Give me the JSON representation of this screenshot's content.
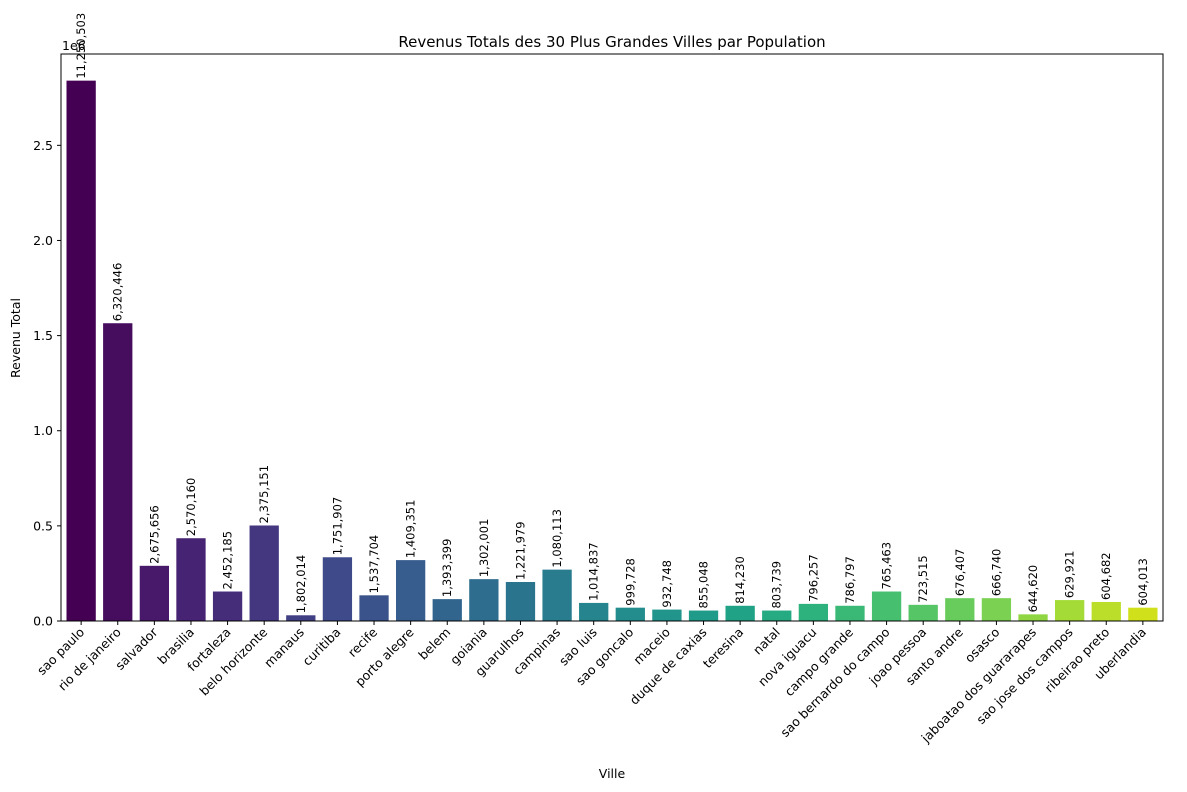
{
  "chart_data": {
    "type": "bar",
    "title": "Revenus Totals des 30 Plus Grandes Villes par Population",
    "xlabel": "Ville",
    "ylabel": "Revenu Total",
    "y_scale_label": "1e6",
    "ylim": [
      0,
      2.98
    ],
    "yticks": [
      0.0,
      0.5,
      1.0,
      1.5,
      2.0,
      2.5
    ],
    "ytick_labels": [
      "0.0",
      "0.5",
      "1.0",
      "1.5",
      "2.0",
      "2.5"
    ],
    "grid": false,
    "categories": [
      "sao paulo",
      "rio de janeiro",
      "salvador",
      "brasilia",
      "fortaleza",
      "belo horizonte",
      "manaus",
      "curitiba",
      "recife",
      "porto alegre",
      "belem",
      "goiania",
      "guarulhos",
      "campinas",
      "sao luis",
      "sao goncalo",
      "maceio",
      "duque de caxias",
      "teresina",
      "natal",
      "nova iguacu",
      "campo grande",
      "sao bernardo do campo",
      "joao pessoa",
      "santo andre",
      "osasco",
      "jaboatao dos guararapes",
      "sao jose dos campos",
      "ribeirao preto",
      "uberlandia"
    ],
    "values": [
      2.84,
      1.565,
      0.29,
      0.435,
      0.155,
      0.502,
      0.03,
      0.335,
      0.135,
      0.32,
      0.115,
      0.22,
      0.205,
      0.27,
      0.095,
      0.07,
      0.06,
      0.055,
      0.08,
      0.055,
      0.09,
      0.08,
      0.155,
      0.085,
      0.12,
      0.12,
      0.035,
      0.11,
      0.1,
      0.07
    ],
    "bar_labels": [
      "11,250,503",
      "6,320,446",
      "2,675,656",
      "2,570,160",
      "2,452,185",
      "2,375,151",
      "1,802,014",
      "1,751,907",
      "1,537,704",
      "1,409,351",
      "1,393,399",
      "1,302,001",
      "1,221,979",
      "1,080,113",
      "1,014,837",
      "999,728",
      "932,748",
      "855,048",
      "814,230",
      "803,739",
      "796,257",
      "786,797",
      "765,463",
      "723,515",
      "676,407",
      "666,740",
      "644,620",
      "629,921",
      "604,682",
      "604,013"
    ],
    "colors": [
      "#440154",
      "#481b6d",
      "#46327e",
      "#3f4788",
      "#365c8d",
      "#2e6e8e",
      "#277f8e",
      "#21918c",
      "#1fa187",
      "#2db27d",
      "#4ac16d",
      "#71cf57",
      "#a0da39",
      "#d0e11c"
    ],
    "colormap": "viridis"
  }
}
